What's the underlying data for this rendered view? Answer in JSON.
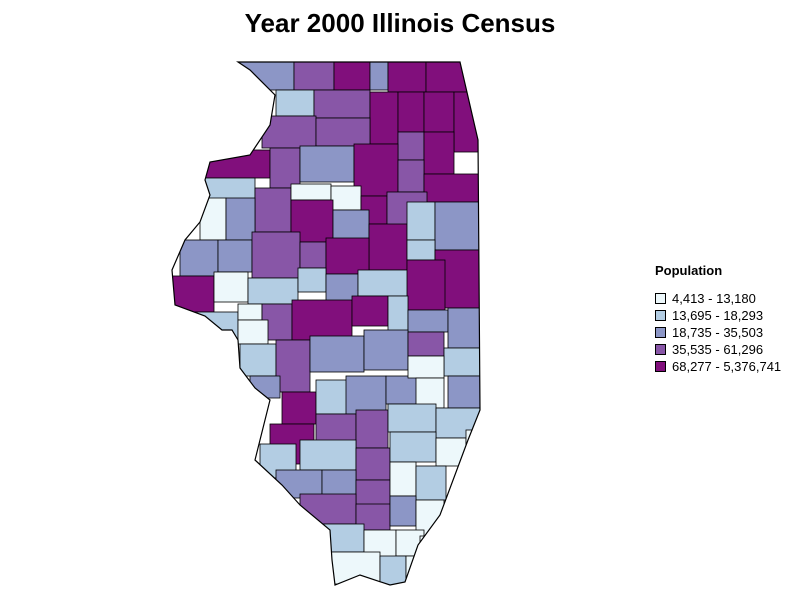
{
  "title": "Year 2000 Illinois Census",
  "legend": {
    "title": "Population",
    "items": [
      {
        "label": "4,413 - 13,180",
        "color": "#edf8fb"
      },
      {
        "label": "13,695 - 18,293",
        "color": "#b3cde3"
      },
      {
        "label": "18,735 - 35,503",
        "color": "#8c96c6"
      },
      {
        "label": "35,535 - 61,296",
        "color": "#8856a7"
      },
      {
        "label": "68,277 - 5,376,741",
        "color": "#810f7c"
      }
    ]
  }
}
